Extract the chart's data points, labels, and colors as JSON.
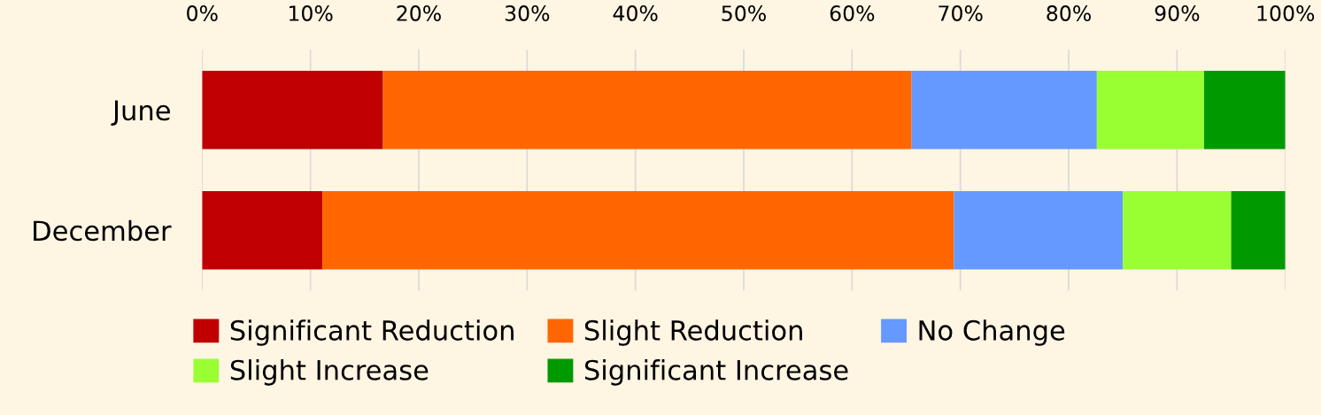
{
  "chart_data": {
    "type": "bar",
    "orientation": "horizontal",
    "stacked": true,
    "categories": [
      "June",
      "December"
    ],
    "series": [
      {
        "name": "Significant Reduction",
        "color": "#c00000",
        "values": [
          16.7,
          11.1
        ]
      },
      {
        "name": "Slight Reduction",
        "color": "#ff6600",
        "values": [
          48.8,
          58.3
        ]
      },
      {
        "name": "No Change",
        "color": "#6699ff",
        "values": [
          17.1,
          15.6
        ]
      },
      {
        "name": "Slight Increase",
        "color": "#99ff33",
        "values": [
          9.9,
          10.0
        ]
      },
      {
        "name": "Significant Increase",
        "color": "#009900",
        "values": [
          7.5,
          5.0
        ]
      }
    ],
    "xlim": [
      0,
      100
    ],
    "xticks": [
      {
        "value": 0,
        "label": "0%"
      },
      {
        "value": 10,
        "label": "10%"
      },
      {
        "value": 20,
        "label": "20%"
      },
      {
        "value": 30,
        "label": "30%"
      },
      {
        "value": 40,
        "label": "40%"
      },
      {
        "value": 50,
        "label": "50%"
      },
      {
        "value": 60,
        "label": "60%"
      },
      {
        "value": 70,
        "label": "70%"
      },
      {
        "value": 80,
        "label": "80%"
      },
      {
        "value": 90,
        "label": "90%"
      },
      {
        "value": 100,
        "label": "100%"
      }
    ],
    "grid": "x",
    "legend": "bottom"
  }
}
